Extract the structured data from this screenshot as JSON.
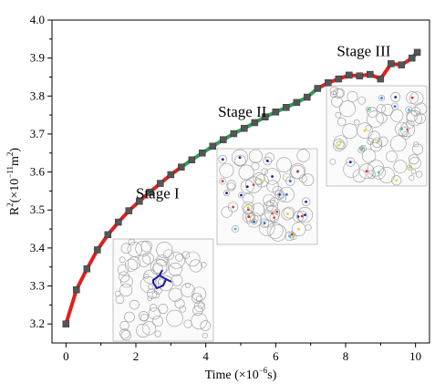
{
  "chart_data": {
    "type": "line",
    "xlabel_prefix": "Time (×10",
    "xlabel_exp": "−6",
    "xlabel_suffix": "s)",
    "ylabel_base": "R",
    "ylabel_sup": "2",
    "ylabel_mid": "(×10",
    "ylabel_exp": "−11",
    "ylabel_unit": "m",
    "ylabel_unit_sup": "2",
    "ylabel_end": ")",
    "xlim": [
      -0.4,
      10.4
    ],
    "ylim": [
      3.15,
      4.0
    ],
    "xticks": [
      "0",
      "2",
      "4",
      "6",
      "8",
      "10"
    ],
    "yticks": [
      "3.2",
      "3.3",
      "3.4",
      "3.5",
      "3.6",
      "3.7",
      "3.8",
      "3.9",
      "4.0"
    ],
    "x": [
      0.0,
      0.3,
      0.6,
      0.9,
      1.2,
      1.5,
      1.8,
      2.1,
      2.4,
      2.7,
      3.0,
      3.3,
      3.6,
      3.9,
      4.2,
      4.5,
      4.8,
      5.1,
      5.4,
      5.7,
      6.0,
      6.3,
      6.6,
      6.9,
      7.2,
      7.5,
      7.8,
      8.1,
      8.4,
      8.7,
      9.0,
      9.3,
      9.6,
      9.9,
      10.05
    ],
    "y": [
      3.2,
      3.29,
      3.345,
      3.395,
      3.435,
      3.468,
      3.498,
      3.523,
      3.547,
      3.57,
      3.593,
      3.613,
      3.632,
      3.65,
      3.668,
      3.685,
      3.701,
      3.715,
      3.73,
      3.745,
      3.758,
      3.77,
      3.783,
      3.797,
      3.82,
      3.835,
      3.845,
      3.855,
      3.853,
      3.857,
      3.845,
      3.885,
      3.882,
      3.9,
      3.915
    ],
    "stage_boundaries": [
      3.3,
      7.3
    ],
    "stage_colors": [
      "#e02020",
      "#2ca05a",
      "#e02020"
    ],
    "marker_color": "#555555",
    "stage_labels": [
      {
        "text": "Stage I",
        "x": 2.0,
        "y": 3.53
      },
      {
        "text": "Stage II",
        "x": 4.35,
        "y": 3.745
      },
      {
        "text": "Stage III",
        "x": 7.75,
        "y": 3.905
      }
    ],
    "grid": false
  }
}
